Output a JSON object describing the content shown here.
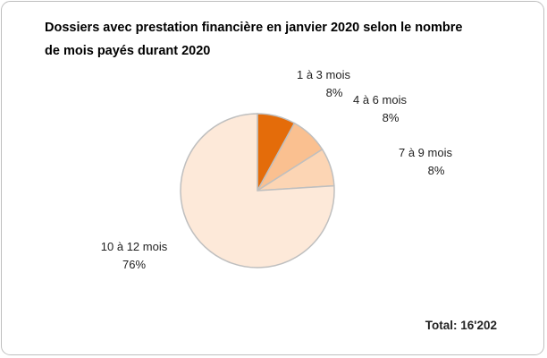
{
  "chart_data": {
    "type": "pie",
    "title": "Dossiers avec prestation financière en janvier 2020 selon le nombre de mois payés durant 2020",
    "categories": [
      "1 à 3 mois",
      "4 à 6 mois",
      "7 à 9 mois",
      "10 à 12 mois"
    ],
    "values": [
      8,
      8,
      8,
      76
    ],
    "value_labels": [
      "8%",
      "8%",
      "8%",
      "76%"
    ],
    "colors": [
      "#e46c0a",
      "#fac090",
      "#fcd5b4",
      "#fde9d9"
    ],
    "annotation": "Total: 16'202"
  }
}
